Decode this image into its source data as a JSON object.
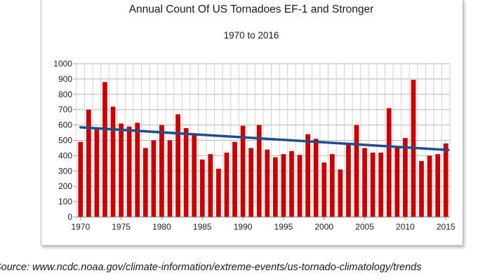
{
  "chart_data": {
    "type": "bar",
    "title": "Annual Count Of US Tornadoes EF-1 and Stronger",
    "subtitle": "1970 to 2016",
    "xlabel": "",
    "ylabel": "",
    "ylim": [
      0,
      1000
    ],
    "yticks": [
      0,
      100,
      200,
      300,
      400,
      500,
      600,
      700,
      800,
      900,
      1000
    ],
    "xticks": [
      1970,
      1975,
      1980,
      1985,
      1990,
      1995,
      2000,
      2005,
      2010,
      2015
    ],
    "grid": true,
    "legend": "none",
    "bar_color": "#cc0000",
    "trend_color": "#1f4e8c",
    "categories": [
      1970,
      1971,
      1972,
      1973,
      1974,
      1975,
      1976,
      1977,
      1978,
      1979,
      1980,
      1981,
      1982,
      1983,
      1984,
      1985,
      1986,
      1987,
      1988,
      1989,
      1990,
      1991,
      1992,
      1993,
      1994,
      1995,
      1996,
      1997,
      1998,
      1999,
      2000,
      2001,
      2002,
      2003,
      2004,
      2005,
      2006,
      2007,
      2008,
      2009,
      2010,
      2011,
      2012,
      2013,
      2014,
      2015
    ],
    "values": [
      490,
      700,
      580,
      880,
      720,
      610,
      590,
      615,
      450,
      500,
      600,
      500,
      670,
      580,
      540,
      375,
      410,
      315,
      420,
      490,
      595,
      450,
      600,
      440,
      390,
      410,
      430,
      405,
      540,
      510,
      355,
      410,
      310,
      470,
      600,
      450,
      420,
      420,
      710,
      460,
      515,
      895,
      365,
      400,
      410,
      480
    ],
    "trendline": {
      "start": {
        "x": 1970,
        "y": 585
      },
      "end": {
        "x": 2015,
        "y": 437
      }
    }
  },
  "source_note": "Source: www.ncdc.noaa.gov/climate-information/extreme-events/us-tornado-climatology/trends"
}
